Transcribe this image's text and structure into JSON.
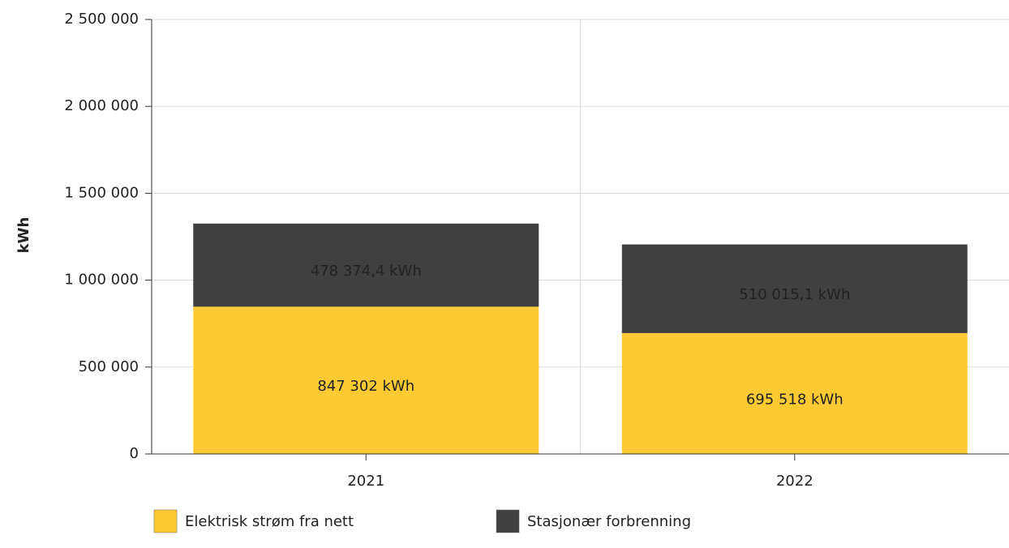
{
  "chart_data": {
    "type": "stacked_bar",
    "y_label": "kWh",
    "categories": [
      "2021",
      "2022"
    ],
    "series": [
      {
        "name": "Elektrisk strøm fra nett",
        "color": "#fdca33",
        "values": [
          847302,
          695518
        ],
        "value_labels": [
          "847 302 kWh",
          "695 518 kWh"
        ]
      },
      {
        "name": "Stasjonær forbrenning",
        "color": "#404040",
        "values": [
          478374.4,
          510015.1
        ],
        "value_labels": [
          "478 374,4 kWh",
          "510 015,1 kWh"
        ]
      }
    ],
    "ylim": [
      0,
      2500000
    ],
    "yticks": [
      0,
      {
        "value": 500000,
        "label": "500 000"
      },
      {
        "value": 1000000,
        "label": "1 000 000"
      },
      {
        "value": 1500000,
        "label": "1 500 000"
      },
      {
        "value": 2000000,
        "label": "2 000 000"
      },
      {
        "value": 2500000,
        "label": "2 500 000"
      }
    ],
    "grid": true,
    "legend": "bottom"
  }
}
